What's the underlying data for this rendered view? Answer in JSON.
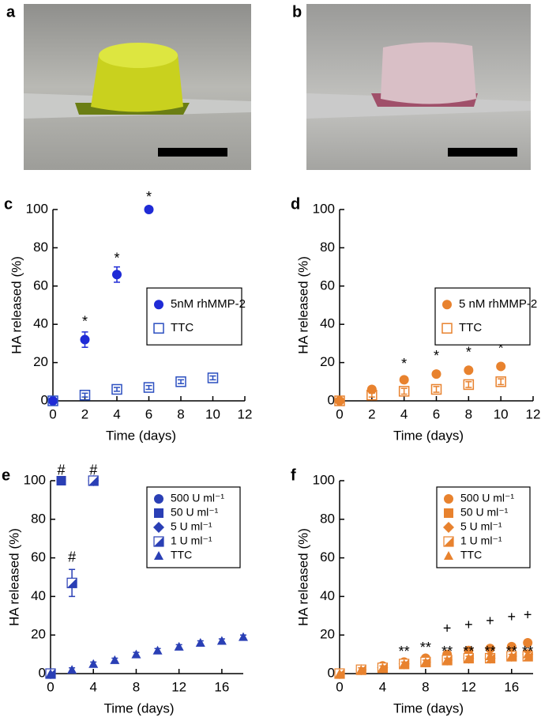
{
  "photos": [
    {
      "label": "a"
    },
    {
      "label": "b"
    }
  ],
  "chart_data": [
    {
      "type": "scatter",
      "panel": "c",
      "xlabel": "Time (days)",
      "ylabel": "HA released (%)",
      "xlim": [
        0,
        12
      ],
      "xticks": [
        0,
        2,
        4,
        6,
        8,
        10,
        12
      ],
      "ylim": [
        0,
        100
      ],
      "yticks": [
        0,
        20,
        40,
        60,
        80,
        100
      ],
      "legend": "right",
      "series": [
        {
          "name": "5nM rhMMP-2",
          "color": "#1f2bd6",
          "marker": "circle",
          "x": [
            0,
            2,
            4,
            6
          ],
          "values": [
            0,
            32,
            66,
            100
          ],
          "errors": [
            1,
            4,
            4,
            0
          ]
        },
        {
          "name": "TTC",
          "color": "#2b4fc0",
          "marker": "open-square",
          "x": [
            0,
            2,
            4,
            6,
            8,
            10
          ],
          "values": [
            0,
            3,
            6,
            7,
            10,
            12
          ],
          "errors": [
            0,
            1,
            1,
            1,
            1,
            1
          ]
        }
      ],
      "annotations": [
        {
          "text": "*",
          "x": 2,
          "y": 41
        },
        {
          "text": "*",
          "x": 4,
          "y": 74
        },
        {
          "text": "*",
          "x": 6,
          "y": 106
        }
      ]
    },
    {
      "type": "scatter",
      "panel": "d",
      "xlabel": "Time (days)",
      "ylabel": "HA released (%)",
      "xlim": [
        0,
        12
      ],
      "xticks": [
        0,
        2,
        4,
        6,
        8,
        10,
        12
      ],
      "ylim": [
        0,
        100
      ],
      "yticks": [
        0,
        20,
        40,
        60,
        80,
        100
      ],
      "legend": "right",
      "series": [
        {
          "name": "5 nM rhMMP-2",
          "color": "#e8822e",
          "marker": "circle",
          "x": [
            0,
            2,
            4,
            6,
            8,
            10
          ],
          "values": [
            0,
            6,
            11,
            14,
            16,
            18
          ],
          "errors": [
            0,
            1,
            1,
            1,
            1,
            1
          ]
        },
        {
          "name": "TTC",
          "color": "#e8822e",
          "marker": "open-square",
          "x": [
            0,
            2,
            4,
            6,
            8,
            10
          ],
          "values": [
            0,
            3,
            5,
            6,
            8.5,
            10
          ],
          "errors": [
            0,
            1,
            1.5,
            1.5,
            1.5,
            1.5
          ]
        }
      ],
      "annotations": [
        {
          "text": "*",
          "x": 4,
          "y": 19
        },
        {
          "text": "*",
          "x": 6,
          "y": 23
        },
        {
          "text": "*",
          "x": 8,
          "y": 25
        },
        {
          "text": "*",
          "x": 10,
          "y": 27
        }
      ]
    },
    {
      "type": "scatter",
      "panel": "e",
      "xlabel": "Time (days)",
      "ylabel": "HA released (%)",
      "xlim": [
        0,
        18
      ],
      "xticks": [
        0,
        4,
        8,
        12,
        16
      ],
      "ylim": [
        0,
        100
      ],
      "yticks": [
        0,
        20,
        40,
        60,
        80,
        100
      ],
      "legend": "upper right",
      "series": [
        {
          "name": "500 U ml⁻¹",
          "color": "#2a3fb5",
          "marker": "circle",
          "x": [
            0,
            1
          ],
          "values": [
            0,
            100
          ],
          "errors": [
            0,
            0
          ]
        },
        {
          "name": "50 U ml⁻¹",
          "color": "#2a3fb5",
          "marker": "square",
          "x": [
            0,
            1
          ],
          "values": [
            0,
            100
          ],
          "errors": [
            0,
            0
          ]
        },
        {
          "name": "5 U ml⁻¹",
          "color": "#2a3fb5",
          "marker": "diamond",
          "x": [
            0,
            4
          ],
          "values": [
            0,
            100
          ],
          "errors": [
            0,
            0
          ]
        },
        {
          "name": "1 U ml⁻¹",
          "color": "#2a3fb5",
          "marker": "half-square",
          "x": [
            0,
            2,
            4
          ],
          "values": [
            0,
            47,
            100
          ],
          "errors": [
            0,
            7,
            0
          ]
        },
        {
          "name": "TTC",
          "color": "#2a3fb5",
          "marker": "triangle",
          "x": [
            0,
            2,
            4,
            6,
            8,
            10,
            12,
            14,
            16,
            18
          ],
          "values": [
            0,
            2,
            5,
            7,
            10,
            12,
            14,
            16,
            17,
            19
          ],
          "errors": [
            0,
            1,
            1,
            1,
            1,
            1,
            1,
            1,
            1,
            1
          ]
        }
      ],
      "annotations": [
        {
          "text": "#",
          "x": 1,
          "y": 105
        },
        {
          "text": "#",
          "x": 4,
          "y": 105
        },
        {
          "text": "#",
          "x": 2,
          "y": 60
        }
      ]
    },
    {
      "type": "scatter",
      "panel": "f",
      "xlabel": "Time (days)",
      "ylabel": "HA released (%)",
      "xlim": [
        0,
        18
      ],
      "xticks": [
        0,
        4,
        8,
        12,
        16
      ],
      "ylim": [
        0,
        100
      ],
      "yticks": [
        0,
        20,
        40,
        60,
        80,
        100
      ],
      "legend": "upper right",
      "series": [
        {
          "name": "500 U ml⁻¹",
          "color": "#e8822e",
          "marker": "circle",
          "x": [
            0,
            2,
            4,
            6,
            8,
            10,
            12,
            14,
            16,
            17.5
          ],
          "values": [
            0,
            2,
            4,
            6,
            8,
            10,
            12,
            13,
            14,
            16
          ],
          "errors": [
            0,
            1,
            1,
            1,
            1,
            1,
            1,
            1,
            1,
            1
          ]
        },
        {
          "name": "50 U ml⁻¹",
          "color": "#e8822e",
          "marker": "square",
          "x": [
            0,
            2,
            4,
            6,
            8,
            10,
            12,
            14,
            16,
            17.5
          ],
          "values": [
            0,
            2,
            3,
            5,
            6,
            7,
            8,
            8,
            9,
            10
          ],
          "errors": [
            0,
            1,
            1,
            1,
            1,
            1,
            1,
            1,
            1,
            1
          ]
        },
        {
          "name": "5 U ml⁻¹",
          "color": "#e8822e",
          "marker": "diamond",
          "x": [
            0,
            2,
            4,
            6,
            8,
            10,
            12,
            14,
            16,
            17.5
          ],
          "values": [
            0,
            2,
            3,
            5,
            6,
            7,
            8,
            8,
            9,
            10
          ],
          "errors": [
            0,
            1,
            1,
            1,
            1,
            1,
            1,
            1,
            1,
            1
          ]
        },
        {
          "name": "1 U ml⁻¹",
          "color": "#e8822e",
          "marker": "half-square",
          "x": [
            0,
            2,
            4,
            6,
            8,
            10,
            12,
            14,
            16,
            17.5
          ],
          "values": [
            0,
            2,
            3,
            5,
            6,
            7,
            8,
            8,
            9,
            9
          ],
          "errors": [
            0,
            1,
            1,
            1,
            1,
            1,
            1,
            1,
            1,
            1
          ]
        },
        {
          "name": "TTC",
          "color": "#e8822e",
          "marker": "triangle",
          "x": [
            0,
            2,
            4,
            6,
            8,
            10,
            12,
            14,
            16,
            17.5
          ],
          "values": [
            0,
            2,
            3,
            5,
            6,
            7,
            8,
            9,
            9,
            10
          ],
          "errors": [
            0,
            1,
            1,
            1,
            1,
            1,
            1,
            1,
            1,
            1
          ]
        }
      ],
      "annotations": [
        {
          "text": "**",
          "x": 6,
          "y": 11
        },
        {
          "text": "**",
          "x": 8,
          "y": 13
        },
        {
          "text": "**",
          "x": 10,
          "y": 11
        },
        {
          "text": "**",
          "x": 12,
          "y": 11
        },
        {
          "text": "**",
          "x": 14,
          "y": 11
        },
        {
          "text": "**",
          "x": 16,
          "y": 11
        },
        {
          "text": "**",
          "x": 17.5,
          "y": 11
        },
        {
          "text": "+",
          "x": 10,
          "y": 23
        },
        {
          "text": "+",
          "x": 12,
          "y": 25
        },
        {
          "text": "+",
          "x": 14,
          "y": 27
        },
        {
          "text": "+",
          "x": 16,
          "y": 29
        },
        {
          "text": "+",
          "x": 17.5,
          "y": 30
        }
      ]
    }
  ]
}
